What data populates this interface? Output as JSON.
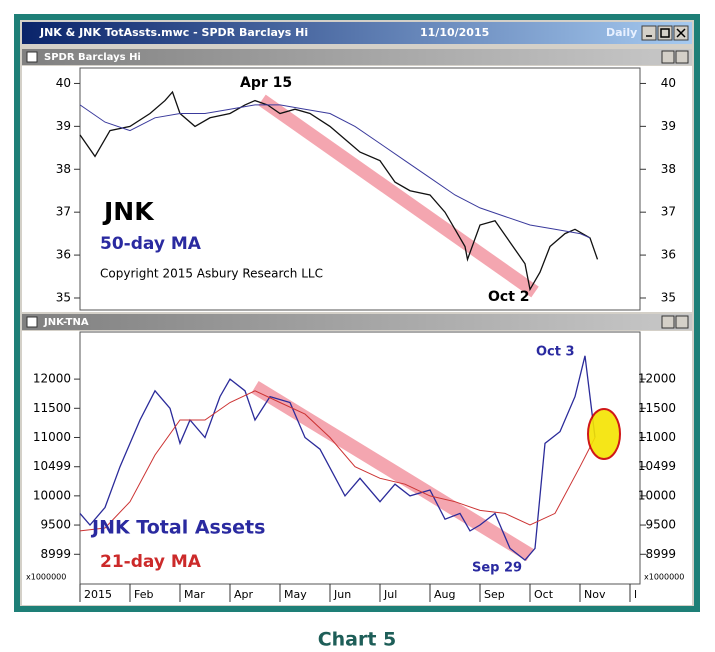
{
  "window": {
    "title": "JNK & JNK TotAssts.mwc - SPDR Barclays Hi",
    "date": "11/10/2015",
    "interval": "Daily"
  },
  "caption": "Chart 5",
  "chart_data": [
    {
      "type": "line",
      "title": "SPDR Barclays Hi",
      "annotations": [
        "Apr 15",
        "Oct 2",
        "JNK",
        "50-day MA",
        "Copyright 2015 Asbury Research LLC"
      ],
      "xlim": [
        1,
        12.2
      ],
      "ylim": [
        34.72,
        40.36
      ],
      "yticks": [
        35,
        36,
        37,
        38,
        39,
        40
      ],
      "series": [
        {
          "name": "JNK",
          "color": "#111111",
          "x": [
            1.0,
            1.3,
            1.6,
            2.0,
            2.4,
            2.7,
            2.85,
            3.0,
            3.3,
            3.6,
            4.0,
            4.3,
            4.5,
            4.75,
            5.0,
            5.3,
            5.6,
            6.0,
            6.3,
            6.6,
            7.0,
            7.3,
            7.6,
            8.0,
            8.3,
            8.5,
            8.7,
            8.75,
            9.0,
            9.3,
            9.6,
            9.9,
            10.0,
            10.2,
            10.4,
            10.7,
            10.9,
            11.2,
            11.35
          ],
          "values": [
            38.8,
            38.3,
            38.9,
            39.0,
            39.3,
            39.6,
            39.8,
            39.3,
            39.0,
            39.2,
            39.3,
            39.5,
            39.6,
            39.5,
            39.3,
            39.4,
            39.3,
            39.0,
            38.7,
            38.4,
            38.2,
            37.7,
            37.5,
            37.4,
            37.0,
            36.6,
            36.2,
            35.9,
            36.7,
            36.8,
            36.3,
            35.8,
            35.2,
            35.6,
            36.2,
            36.5,
            36.6,
            36.4,
            35.9
          ]
        },
        {
          "name": "50-day MA",
          "color": "#3a3a9c",
          "x": [
            1.0,
            1.5,
            2.0,
            2.5,
            3.0,
            3.5,
            4.0,
            4.5,
            5.0,
            5.5,
            6.0,
            6.5,
            7.0,
            7.5,
            8.0,
            8.5,
            9.0,
            9.5,
            10.0,
            10.5,
            11.0,
            11.2
          ],
          "values": [
            39.5,
            39.1,
            38.9,
            39.2,
            39.3,
            39.3,
            39.4,
            39.5,
            39.5,
            39.4,
            39.3,
            39.0,
            38.6,
            38.2,
            37.8,
            37.4,
            37.1,
            36.9,
            36.7,
            36.6,
            36.5,
            36.4
          ]
        }
      ]
    },
    {
      "type": "line",
      "title": "JNK-TNA",
      "annotations": [
        "Oct 3",
        "Sep 29",
        "JNK Total Assets",
        "21-day MA"
      ],
      "unit_label": "x1000000",
      "xlim": [
        1,
        12.2
      ],
      "ylim": [
        8490,
        12807
      ],
      "yticks": [
        8999,
        9500,
        10000,
        10499,
        11000,
        11500,
        12000
      ],
      "xticks": [
        {
          "value": 1,
          "label": "2015"
        },
        {
          "value": 2,
          "label": "Feb"
        },
        {
          "value": 3,
          "label": "Mar"
        },
        {
          "value": 4,
          "label": "Apr"
        },
        {
          "value": 5,
          "label": "May"
        },
        {
          "value": 6,
          "label": "Jun"
        },
        {
          "value": 7,
          "label": "Jul"
        },
        {
          "value": 8,
          "label": "Aug"
        },
        {
          "value": 9,
          "label": "Sep"
        },
        {
          "value": 10,
          "label": "Oct"
        },
        {
          "value": 11,
          "label": "Nov"
        },
        {
          "value": 12,
          "label": "l"
        }
      ],
      "series": [
        {
          "name": "JNK Total Assets",
          "color": "#2b2b9a",
          "x": [
            1.0,
            1.2,
            1.5,
            1.8,
            2.2,
            2.5,
            2.8,
            3.0,
            3.2,
            3.5,
            3.8,
            4.0,
            4.3,
            4.5,
            4.8,
            5.2,
            5.5,
            5.8,
            6.3,
            6.6,
            7.0,
            7.3,
            7.6,
            8.0,
            8.3,
            8.6,
            8.8,
            9.0,
            9.3,
            9.6,
            9.9,
            10.1,
            10.3,
            10.6,
            10.9,
            11.1,
            11.3
          ],
          "values": [
            9700,
            9500,
            9800,
            10500,
            11300,
            11800,
            11500,
            10900,
            11300,
            11000,
            11700,
            12000,
            11800,
            11300,
            11700,
            11600,
            11000,
            10800,
            10000,
            10300,
            9900,
            10200,
            10000,
            10100,
            9600,
            9700,
            9400,
            9500,
            9700,
            9100,
            8900,
            9100,
            10900,
            11100,
            11700,
            12400,
            11000
          ]
        },
        {
          "name": "21-day MA",
          "color": "#cc3333",
          "x": [
            1.0,
            1.5,
            2.0,
            2.5,
            3.0,
            3.5,
            4.0,
            4.5,
            5.0,
            5.5,
            6.0,
            6.5,
            7.0,
            7.5,
            8.0,
            8.5,
            9.0,
            9.5,
            10.0,
            10.5,
            11.0,
            11.3
          ],
          "values": [
            9400,
            9450,
            9900,
            10700,
            11300,
            11300,
            11600,
            11800,
            11600,
            11400,
            11000,
            10500,
            10300,
            10200,
            10000,
            9900,
            9750,
            9700,
            9500,
            9700,
            10500,
            11000
          ]
        }
      ]
    }
  ]
}
